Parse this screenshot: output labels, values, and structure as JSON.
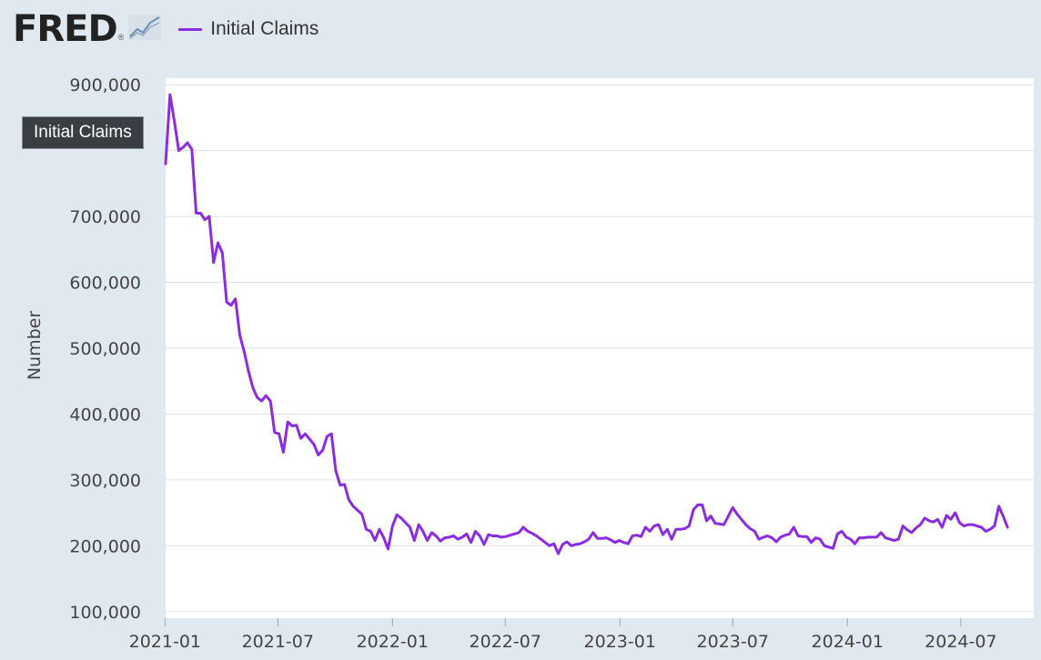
{
  "header": {
    "logo_text": "FRED",
    "logo_mark": "®",
    "logo_icon": "line-graph-icon",
    "legend_label": "Initial Claims"
  },
  "tooltip": {
    "text": "Initial Claims"
  },
  "colors": {
    "series": "#8b2be2",
    "page_background": "#e1e9f0",
    "plot_background": "#ffffff",
    "grid": "#dde3ea",
    "tooltip_background": "#3a3e43"
  },
  "chart_data": {
    "type": "line",
    "title": "",
    "xlabel": "",
    "ylabel": "Number",
    "ylim": [
      90000,
      910000
    ],
    "xlim": [
      "2021-01-02",
      "2024-10-26"
    ],
    "yticks": [
      100000,
      200000,
      300000,
      400000,
      500000,
      600000,
      700000,
      800000,
      900000
    ],
    "ytick_labels": [
      "100,000",
      "200,000",
      "300,000",
      "400,000",
      "500,000",
      "600,000",
      "700,000",
      "",
      "900,000"
    ],
    "xticks": [
      "2021-01-01",
      "2021-07-01",
      "2022-01-01",
      "2022-07-01",
      "2023-01-01",
      "2023-07-01",
      "2024-01-01",
      "2024-07-01"
    ],
    "xtick_labels": [
      "2021-01",
      "2021-07",
      "2022-01",
      "2022-07",
      "2023-01",
      "2023-07",
      "2024-01",
      "2024-07"
    ],
    "grid": true,
    "legend": "top-left",
    "series": [
      {
        "name": "Initial Claims",
        "frequency": "weekly",
        "start": "2021-01-02",
        "values": [
          780000,
          885000,
          845000,
          800000,
          805000,
          812000,
          802000,
          705000,
          705000,
          695000,
          700000,
          630000,
          660000,
          645000,
          570000,
          565000,
          575000,
          520000,
          495000,
          465000,
          440000,
          425000,
          420000,
          428000,
          420000,
          372000,
          370000,
          342000,
          388000,
          382000,
          383000,
          363000,
          370000,
          362000,
          354000,
          338000,
          345000,
          366000,
          370000,
          314000,
          292000,
          293000,
          270000,
          260000,
          254000,
          248000,
          225000,
          222000,
          208000,
          225000,
          212000,
          195000,
          230000,
          247000,
          242000,
          235000,
          228000,
          208000,
          232000,
          222000,
          208000,
          220000,
          215000,
          207000,
          212000,
          213000,
          215000,
          210000,
          213000,
          218000,
          205000,
          222000,
          215000,
          202000,
          217000,
          215000,
          215000,
          213000,
          214000,
          216000,
          218000,
          220000,
          228000,
          222000,
          219000,
          215000,
          210000,
          205000,
          200000,
          203000,
          188000,
          202000,
          206000,
          200000,
          202000,
          203000,
          206000,
          210000,
          220000,
          211000,
          211000,
          212000,
          209000,
          205000,
          208000,
          205000,
          203000,
          215000,
          216000,
          214000,
          228000,
          222000,
          230000,
          232000,
          217000,
          225000,
          210000,
          225000,
          225000,
          226000,
          230000,
          255000,
          262000,
          262000,
          238000,
          245000,
          234000,
          233000,
          232000,
          245000,
          258000,
          248000,
          240000,
          232000,
          226000,
          222000,
          210000,
          213000,
          215000,
          212000,
          206000,
          213000,
          216000,
          218000,
          228000,
          215000,
          214000,
          214000,
          205000,
          212000,
          210000,
          200000,
          198000,
          196000,
          218000,
          222000,
          213000,
          210000,
          203000,
          212000,
          212000,
          213000,
          213000,
          213000,
          220000,
          212000,
          210000,
          208000,
          210000,
          230000,
          224000,
          220000,
          227000,
          232000,
          242000,
          238000,
          236000,
          240000,
          228000,
          246000,
          240000,
          250000,
          235000,
          230000,
          232000,
          232000,
          230000,
          228000,
          222000,
          225000,
          230000,
          260000,
          245000,
          228000
        ]
      }
    ]
  }
}
